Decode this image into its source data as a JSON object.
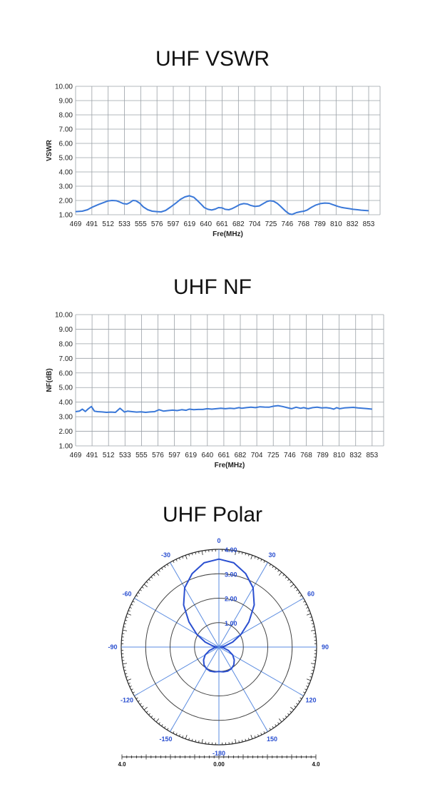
{
  "chart_data": [
    {
      "type": "line",
      "title": "UHF VSWR",
      "xlabel": "Fre(MHz)",
      "ylabel": "VSWR",
      "ylim": [
        1.0,
        10.0
      ],
      "xlim": [
        469,
        863
      ],
      "yticks": [
        "1.00",
        "2.00",
        "3.00",
        "4.00",
        "5.00",
        "6.00",
        "7.00",
        "8.00",
        "9.00",
        "10.00"
      ],
      "xticks": [
        "469",
        "491",
        "512",
        "533",
        "555",
        "576",
        "597",
        "619",
        "640",
        "661",
        "682",
        "704",
        "725",
        "746",
        "768",
        "789",
        "810",
        "832",
        "853"
      ],
      "grid": true,
      "series": [
        {
          "color": "#3a78d8",
          "x": [
            469,
            478,
            485,
            491,
            500,
            508,
            512,
            518,
            524,
            528,
            533,
            538,
            542,
            546,
            550,
            555,
            560,
            566,
            572,
            578,
            584,
            590,
            597,
            604,
            610,
            616,
            622,
            628,
            633,
            638,
            642,
            647,
            652,
            657,
            661,
            666,
            670,
            675,
            679,
            684,
            690,
            695,
            700,
            704,
            710,
            716,
            722,
            726,
            730,
            735,
            740,
            744,
            748,
            752,
            756,
            760,
            766,
            772,
            776,
            780,
            786,
            792,
            798,
            804,
            810,
            814,
            818,
            822,
            826,
            830,
            834,
            838,
            842,
            848,
            853,
            858,
            863
          ],
          "y": [
            1.22,
            1.25,
            1.35,
            1.52,
            1.72,
            1.88,
            1.96,
            2.0,
            1.98,
            1.9,
            1.78,
            1.75,
            1.85,
            2.0,
            1.98,
            1.82,
            1.55,
            1.35,
            1.25,
            1.22,
            1.2,
            1.3,
            1.55,
            1.82,
            2.08,
            2.25,
            2.33,
            2.22,
            1.98,
            1.72,
            1.5,
            1.38,
            1.33,
            1.4,
            1.5,
            1.48,
            1.38,
            1.35,
            1.42,
            1.55,
            1.72,
            1.78,
            1.75,
            1.66,
            1.58,
            1.62,
            1.8,
            1.92,
            1.98,
            1.95,
            1.8,
            1.62,
            1.42,
            1.22,
            1.07,
            1.02,
            1.15,
            1.22,
            1.25,
            1.32,
            1.52,
            1.68,
            1.78,
            1.82,
            1.8,
            1.72,
            1.65,
            1.58,
            1.52,
            1.48,
            1.45,
            1.42,
            1.38,
            1.35,
            1.32,
            1.3,
            1.28
          ]
        }
      ]
    },
    {
      "type": "line",
      "title": "UHF NF",
      "xlabel": "Fre(MHz)",
      "ylabel": "NF(dB)",
      "ylim": [
        1.0,
        10.0
      ],
      "xlim": [
        469,
        863
      ],
      "yticks": [
        "1.00",
        "2.00",
        "3.00",
        "4.00",
        "5.00",
        "6.00",
        "7.00",
        "8.00",
        "9.00",
        "10.00"
      ],
      "xticks": [
        "469",
        "491",
        "512",
        "533",
        "555",
        "576",
        "597",
        "619",
        "640",
        "661",
        "682",
        "704",
        "725",
        "746",
        "768",
        "789",
        "810",
        "832",
        "853"
      ],
      "grid": true,
      "series": [
        {
          "color": "#3a78d8",
          "x": [
            469,
            474,
            478,
            482,
            486,
            490,
            494,
            498,
            504,
            510,
            516,
            522,
            528,
            531,
            534,
            538,
            544,
            550,
            556,
            562,
            568,
            574,
            580,
            586,
            592,
            598,
            604,
            610,
            616,
            620,
            626,
            632,
            638,
            644,
            650,
            656,
            662,
            668,
            674,
            680,
            686,
            690,
            696,
            702,
            708,
            714,
            720,
            726,
            732,
            738,
            744,
            750,
            756,
            762,
            768,
            772,
            778,
            784,
            790,
            796,
            802,
            808,
            812,
            816,
            820,
            826,
            832,
            838,
            844,
            850,
            856,
            863
          ],
          "y": [
            3.35,
            3.38,
            3.52,
            3.36,
            3.55,
            3.7,
            3.38,
            3.35,
            3.33,
            3.3,
            3.32,
            3.3,
            3.58,
            3.45,
            3.32,
            3.38,
            3.35,
            3.32,
            3.34,
            3.3,
            3.33,
            3.35,
            3.48,
            3.38,
            3.42,
            3.45,
            3.42,
            3.48,
            3.44,
            3.52,
            3.48,
            3.5,
            3.5,
            3.55,
            3.52,
            3.55,
            3.58,
            3.55,
            3.58,
            3.56,
            3.62,
            3.58,
            3.62,
            3.65,
            3.62,
            3.68,
            3.66,
            3.65,
            3.72,
            3.76,
            3.7,
            3.62,
            3.55,
            3.65,
            3.58,
            3.62,
            3.55,
            3.62,
            3.65,
            3.6,
            3.62,
            3.58,
            3.52,
            3.62,
            3.55,
            3.6,
            3.62,
            3.64,
            3.6,
            3.58,
            3.56,
            3.52
          ]
        }
      ]
    },
    {
      "type": "polar",
      "title": "UHF Polar",
      "radial_ticks": [
        "1.00",
        "2.00",
        "3.00",
        "4.00"
      ],
      "rlim": [
        0,
        4
      ],
      "angle_labels": [
        "0",
        "30",
        "60",
        "90",
        "120",
        "150",
        "-180",
        "-150",
        "-120",
        "-90",
        "-60",
        "-30"
      ],
      "scale_labels": [
        "4.0",
        "0.00",
        "4.0"
      ],
      "series": [
        {
          "color": "#2a4fd0",
          "angles_deg": [
            0,
            10,
            20,
            30,
            40,
            50,
            60,
            70,
            80,
            90,
            100,
            110,
            120,
            130,
            140,
            150,
            160,
            170,
            180,
            190,
            200,
            210,
            220,
            230,
            240,
            250,
            260,
            270,
            280,
            290,
            300,
            310,
            320,
            330,
            340,
            350,
            360
          ],
          "r": [
            3.6,
            3.5,
            3.2,
            2.8,
            2.25,
            1.6,
            1.05,
            0.6,
            0.25,
            0.08,
            0.2,
            0.42,
            0.65,
            0.82,
            0.95,
            1.02,
            1.05,
            1.03,
            1.0,
            1.03,
            1.05,
            1.02,
            0.95,
            0.82,
            0.65,
            0.42,
            0.2,
            0.08,
            0.25,
            0.6,
            1.05,
            1.6,
            2.25,
            2.8,
            3.2,
            3.5,
            3.6
          ]
        }
      ]
    }
  ]
}
